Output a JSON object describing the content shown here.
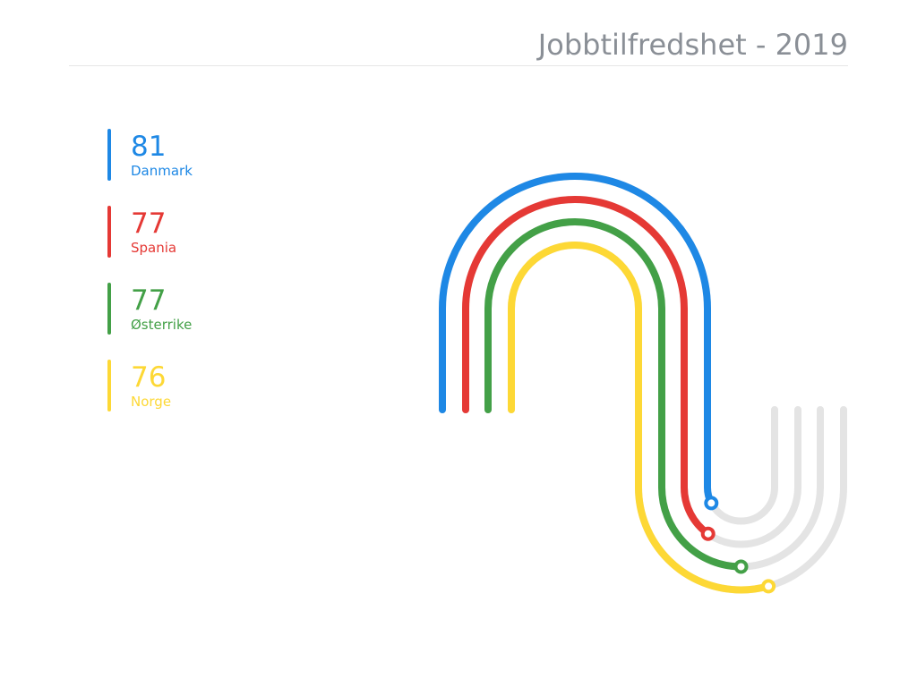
{
  "chart_data": {
    "type": "radial-bar",
    "title": "Jobbtilfredshet - 2019",
    "categories": [
      "Danmark",
      "Spania",
      "Østerrike",
      "Norge"
    ],
    "values": [
      81,
      77,
      77,
      76
    ],
    "colors": [
      "#1e88e5",
      "#e53935",
      "#43a047",
      "#fdd835"
    ],
    "track_color": "#e4e4e4",
    "ylim": [
      0,
      100
    ],
    "legend": "left"
  },
  "legend_items": [
    {
      "value": "81",
      "label": "Danmark",
      "color": "#1e88e5"
    },
    {
      "value": "77",
      "label": "Spania",
      "color": "#e53935"
    },
    {
      "value": "77",
      "label": "Østerrike",
      "color": "#43a047"
    },
    {
      "value": "76",
      "label": "Norge",
      "color": "#fdd835"
    }
  ]
}
